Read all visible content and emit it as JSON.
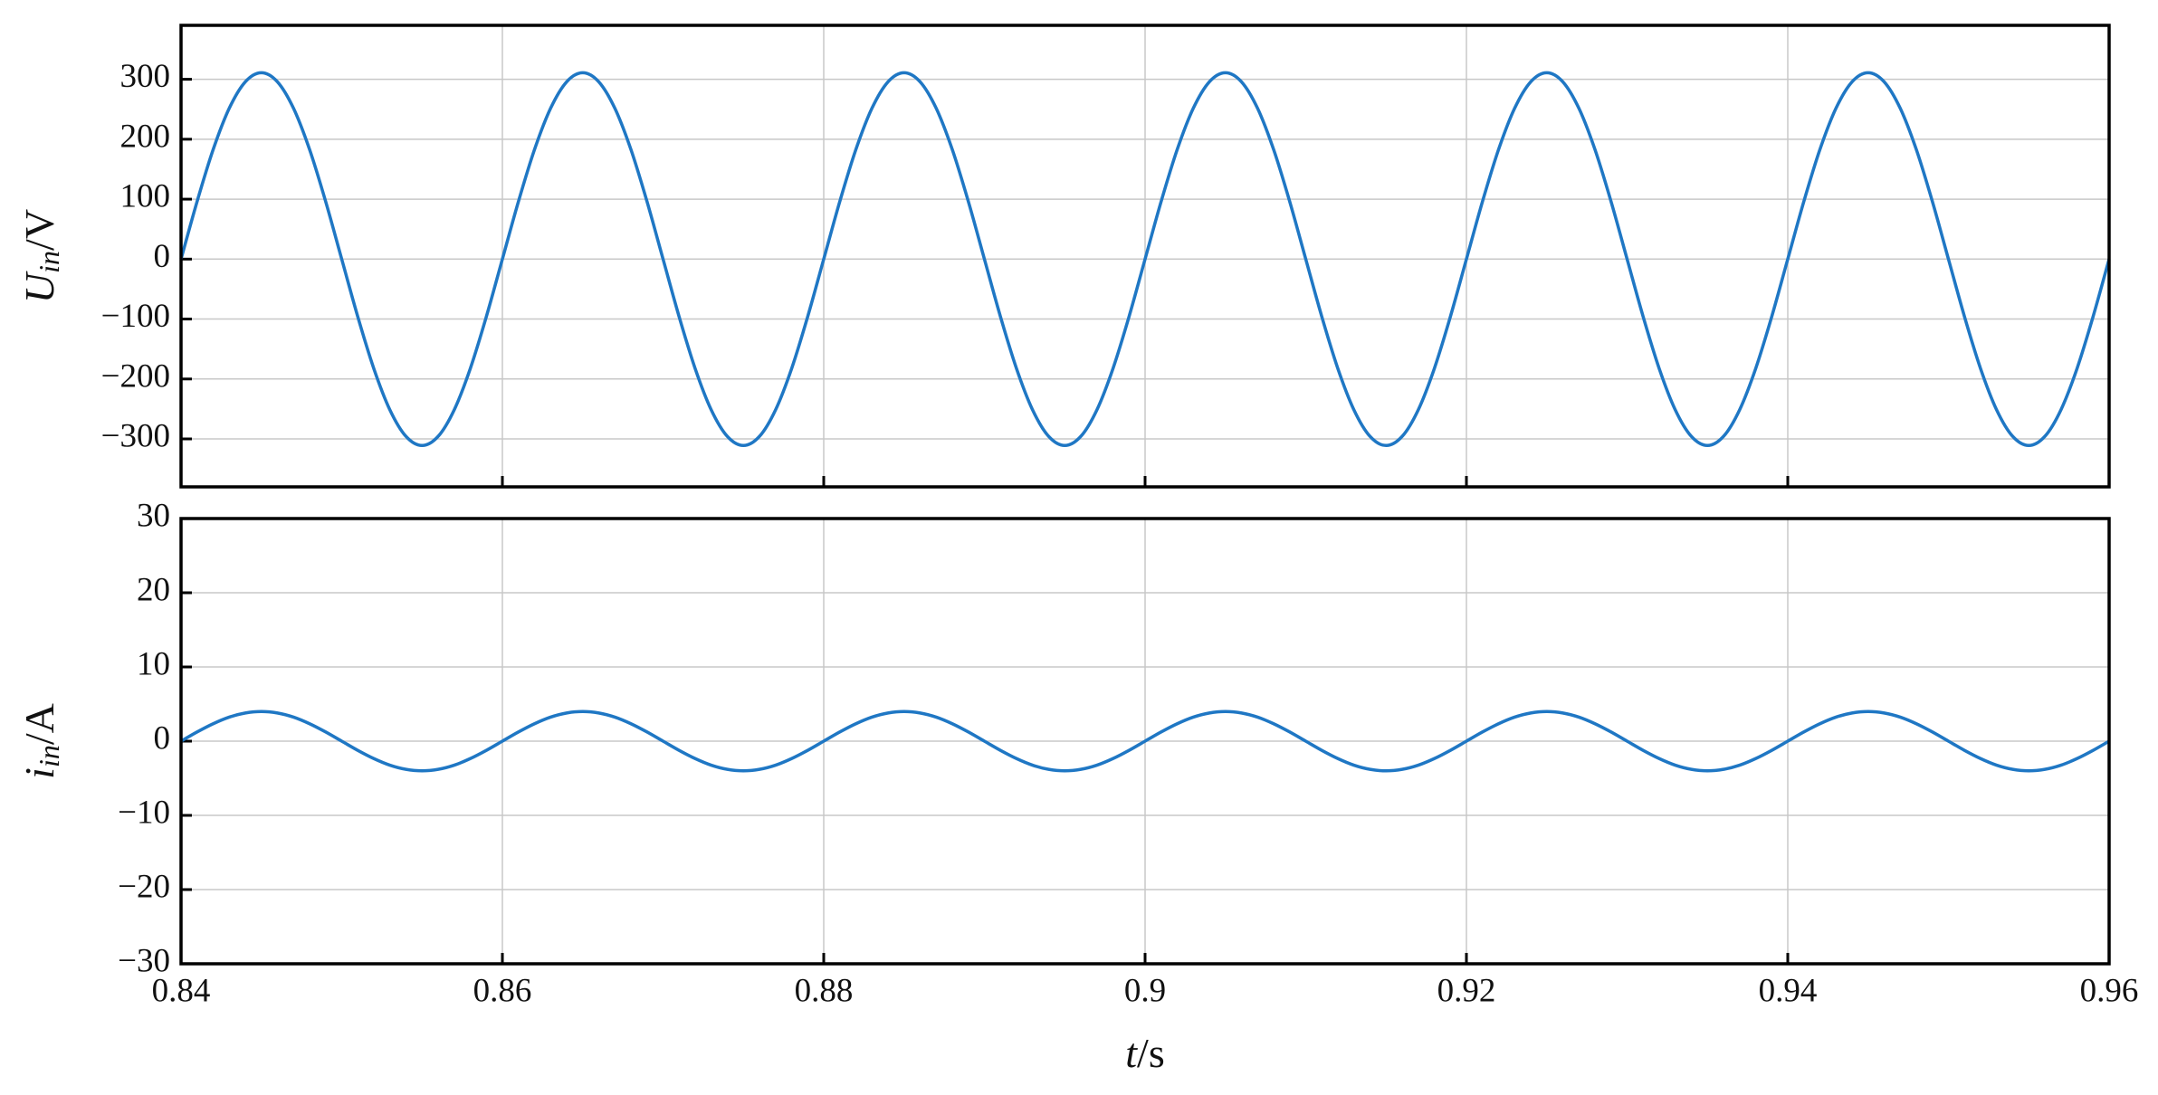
{
  "chart_data": [
    {
      "type": "line",
      "ylabel": {
        "symbol": "U",
        "subscript": "in",
        "unit": "/V"
      },
      "xlim": [
        0.84,
        0.96
      ],
      "xticks": [
        0.84,
        0.86,
        0.88,
        0.9,
        0.92,
        0.94,
        0.96
      ],
      "ylim": [
        -380,
        390
      ],
      "yticks": [
        {
          "value": -300,
          "label": "−300"
        },
        {
          "value": -200,
          "label": "−200"
        },
        {
          "value": -100,
          "label": "−100"
        },
        0,
        100,
        200,
        300
      ],
      "grid": true,
      "x": [
        0.84,
        0.841,
        0.842,
        0.843,
        0.844,
        0.845,
        0.846,
        0.847,
        0.848,
        0.849,
        0.85,
        0.851,
        0.852,
        0.853,
        0.854,
        0.855,
        0.856,
        0.857,
        0.858,
        0.859,
        0.86,
        0.861,
        0.862,
        0.863,
        0.864,
        0.865,
        0.866,
        0.867,
        0.868,
        0.869,
        0.87,
        0.871,
        0.872,
        0.873,
        0.874,
        0.875,
        0.876,
        0.877,
        0.878,
        0.879,
        0.88,
        0.881,
        0.882,
        0.883,
        0.884,
        0.885,
        0.886,
        0.887,
        0.888,
        0.889,
        0.89,
        0.891,
        0.892,
        0.893,
        0.894,
        0.895,
        0.896,
        0.897,
        0.898,
        0.899,
        0.9,
        0.901,
        0.902,
        0.903,
        0.904,
        0.905,
        0.906,
        0.907,
        0.908,
        0.909,
        0.91,
        0.911,
        0.912,
        0.913,
        0.914,
        0.915,
        0.916,
        0.917,
        0.918,
        0.919,
        0.92,
        0.921,
        0.922,
        0.923,
        0.924,
        0.925,
        0.926,
        0.927,
        0.928,
        0.929,
        0.93,
        0.931,
        0.932,
        0.933,
        0.934,
        0.935,
        0.936,
        0.937,
        0.938,
        0.939,
        0.94,
        0.941,
        0.942,
        0.943,
        0.944,
        0.945,
        0.946,
        0.947,
        0.948,
        0.949,
        0.95,
        0.951,
        0.952,
        0.953,
        0.954,
        0.955,
        0.956,
        0.957,
        0.958,
        0.959,
        0.96
      ],
      "series": [
        {
          "color": "#1f77c4",
          "values": [
            0,
            96.1,
            182.8,
            251.6,
            295.8,
            311,
            295.8,
            251.6,
            182.8,
            96.1,
            0,
            -96.1,
            -182.8,
            -251.6,
            -295.8,
            -311,
            -295.8,
            -251.6,
            -182.8,
            -96.1,
            0,
            96.1,
            182.8,
            251.6,
            295.8,
            311,
            295.8,
            251.6,
            182.8,
            96.1,
            0,
            -96.1,
            -182.8,
            -251.6,
            -295.8,
            -311,
            -295.8,
            -251.6,
            -182.8,
            -96.1,
            0,
            96.1,
            182.8,
            251.6,
            295.8,
            311,
            295.8,
            251.6,
            182.8,
            96.1,
            0,
            -96.1,
            -182.8,
            -251.6,
            -295.8,
            -311,
            -295.8,
            -251.6,
            -182.8,
            -96.1,
            0,
            96.1,
            182.8,
            251.6,
            295.8,
            311,
            295.8,
            251.6,
            182.8,
            96.1,
            0,
            -96.1,
            -182.8,
            -251.6,
            -295.8,
            -311,
            -295.8,
            -251.6,
            -182.8,
            -96.1,
            0,
            96.1,
            182.8,
            251.6,
            295.8,
            311,
            295.8,
            251.6,
            182.8,
            96.1,
            0,
            -96.1,
            -182.8,
            -251.6,
            -295.8,
            -311,
            -295.8,
            -251.6,
            -182.8,
            -96.1,
            0,
            96.1,
            182.8,
            251.6,
            295.8,
            311,
            295.8,
            251.6,
            182.8,
            96.1,
            0,
            -96.1,
            -182.8,
            -251.6,
            -295.8,
            -311,
            -295.8,
            -251.6,
            -182.8,
            -96.1,
            0
          ]
        }
      ]
    },
    {
      "type": "line",
      "ylabel": {
        "symbol": "i",
        "subscript": "in",
        "unit": "/A"
      },
      "xlabel": {
        "symbol": "t",
        "unit": "/s"
      },
      "xlim": [
        0.84,
        0.96
      ],
      "xticks": [
        0.84,
        0.86,
        0.88,
        0.9,
        0.92,
        0.94,
        0.96
      ],
      "ylim": [
        -30,
        30
      ],
      "yticks": [
        {
          "value": -30,
          "label": "−30"
        },
        {
          "value": -20,
          "label": "−20"
        },
        {
          "value": -10,
          "label": "−10"
        },
        0,
        10,
        20,
        30
      ],
      "grid": true,
      "x": [
        0.84,
        0.841,
        0.842,
        0.843,
        0.844,
        0.845,
        0.846,
        0.847,
        0.848,
        0.849,
        0.85,
        0.851,
        0.852,
        0.853,
        0.854,
        0.855,
        0.856,
        0.857,
        0.858,
        0.859,
        0.86,
        0.861,
        0.862,
        0.863,
        0.864,
        0.865,
        0.866,
        0.867,
        0.868,
        0.869,
        0.87,
        0.871,
        0.872,
        0.873,
        0.874,
        0.875,
        0.876,
        0.877,
        0.878,
        0.879,
        0.88,
        0.881,
        0.882,
        0.883,
        0.884,
        0.885,
        0.886,
        0.887,
        0.888,
        0.889,
        0.89,
        0.891,
        0.892,
        0.893,
        0.894,
        0.895,
        0.896,
        0.897,
        0.898,
        0.899,
        0.9,
        0.901,
        0.902,
        0.903,
        0.904,
        0.905,
        0.906,
        0.907,
        0.908,
        0.909,
        0.91,
        0.911,
        0.912,
        0.913,
        0.914,
        0.915,
        0.916,
        0.917,
        0.918,
        0.919,
        0.92,
        0.921,
        0.922,
        0.923,
        0.924,
        0.925,
        0.926,
        0.927,
        0.928,
        0.929,
        0.93,
        0.931,
        0.932,
        0.933,
        0.934,
        0.935,
        0.936,
        0.937,
        0.938,
        0.939,
        0.94,
        0.941,
        0.942,
        0.943,
        0.944,
        0.945,
        0.946,
        0.947,
        0.948,
        0.949,
        0.95,
        0.951,
        0.952,
        0.953,
        0.954,
        0.955,
        0.956,
        0.957,
        0.958,
        0.959,
        0.96
      ],
      "series": [
        {
          "color": "#1f77c4",
          "values": [
            0,
            1.24,
            2.35,
            3.24,
            3.8,
            4,
            3.8,
            3.24,
            2.35,
            1.24,
            0,
            -1.24,
            -2.35,
            -3.24,
            -3.8,
            -4,
            -3.8,
            -3.24,
            -2.35,
            -1.24,
            0,
            1.24,
            2.35,
            3.24,
            3.8,
            4,
            3.8,
            3.24,
            2.35,
            1.24,
            0,
            -1.24,
            -2.35,
            -3.24,
            -3.8,
            -4,
            -3.8,
            -3.24,
            -2.35,
            -1.24,
            0,
            1.24,
            2.35,
            3.24,
            3.8,
            4,
            3.8,
            3.24,
            2.35,
            1.24,
            0,
            -1.24,
            -2.35,
            -3.24,
            -3.8,
            -4,
            -3.8,
            -3.24,
            -2.35,
            -1.24,
            0,
            1.24,
            2.35,
            3.24,
            3.8,
            4,
            3.8,
            3.24,
            2.35,
            1.24,
            0,
            -1.24,
            -2.35,
            -3.24,
            -3.8,
            -4,
            -3.8,
            -3.24,
            -2.35,
            -1.24,
            0,
            1.24,
            2.35,
            3.24,
            3.8,
            4,
            3.8,
            3.24,
            2.35,
            1.24,
            0,
            -1.24,
            -2.35,
            -3.24,
            -3.8,
            -4,
            -3.8,
            -3.24,
            -2.35,
            -1.24,
            0,
            1.24,
            2.35,
            3.24,
            3.8,
            4,
            3.8,
            3.24,
            2.35,
            1.24,
            0,
            -1.24,
            -2.35,
            -3.24,
            -3.8,
            -4,
            -3.8,
            -3.24,
            -2.35,
            -1.24,
            0
          ]
        }
      ]
    }
  ]
}
